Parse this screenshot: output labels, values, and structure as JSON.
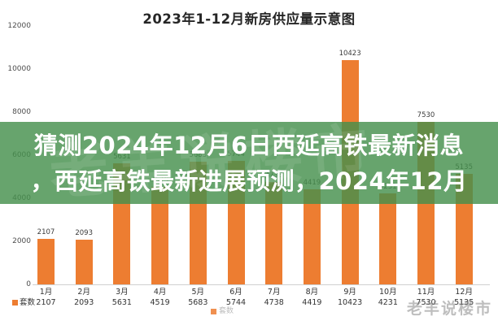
{
  "title": "2023年1-12月新房供应量示意图",
  "overlay": {
    "line1": "猜测2024年12月6日西延高铁最新消息",
    "line2": "，西延高铁最新进展预测，2024年12月",
    "bg_color": "rgba(69,144,77,0.82)",
    "text_color": "#ffffff"
  },
  "chart_data": {
    "type": "bar",
    "title": "2023年1-12月新房供应量示意图",
    "categories": [
      "1月",
      "2月",
      "3月",
      "4月",
      "5月",
      "6月",
      "7月",
      "8月",
      "9月",
      "10月",
      "11月",
      "12月"
    ],
    "values": [
      2107,
      2093,
      5631,
      4519,
      5683,
      5744,
      4738,
      4419,
      10423,
      4231,
      7530,
      5135
    ],
    "series_name": "套数",
    "xlabel": "",
    "ylabel": "",
    "ylim": [
      0,
      12000
    ],
    "yticks": [
      0,
      2000,
      4000,
      6000,
      8000,
      10000,
      12000
    ],
    "grid": false,
    "legend": {
      "label": "套数",
      "position": "bottom"
    },
    "bar_color": "#ED7D31",
    "data_labels": true
  },
  "watermark": "老羊说楼市"
}
